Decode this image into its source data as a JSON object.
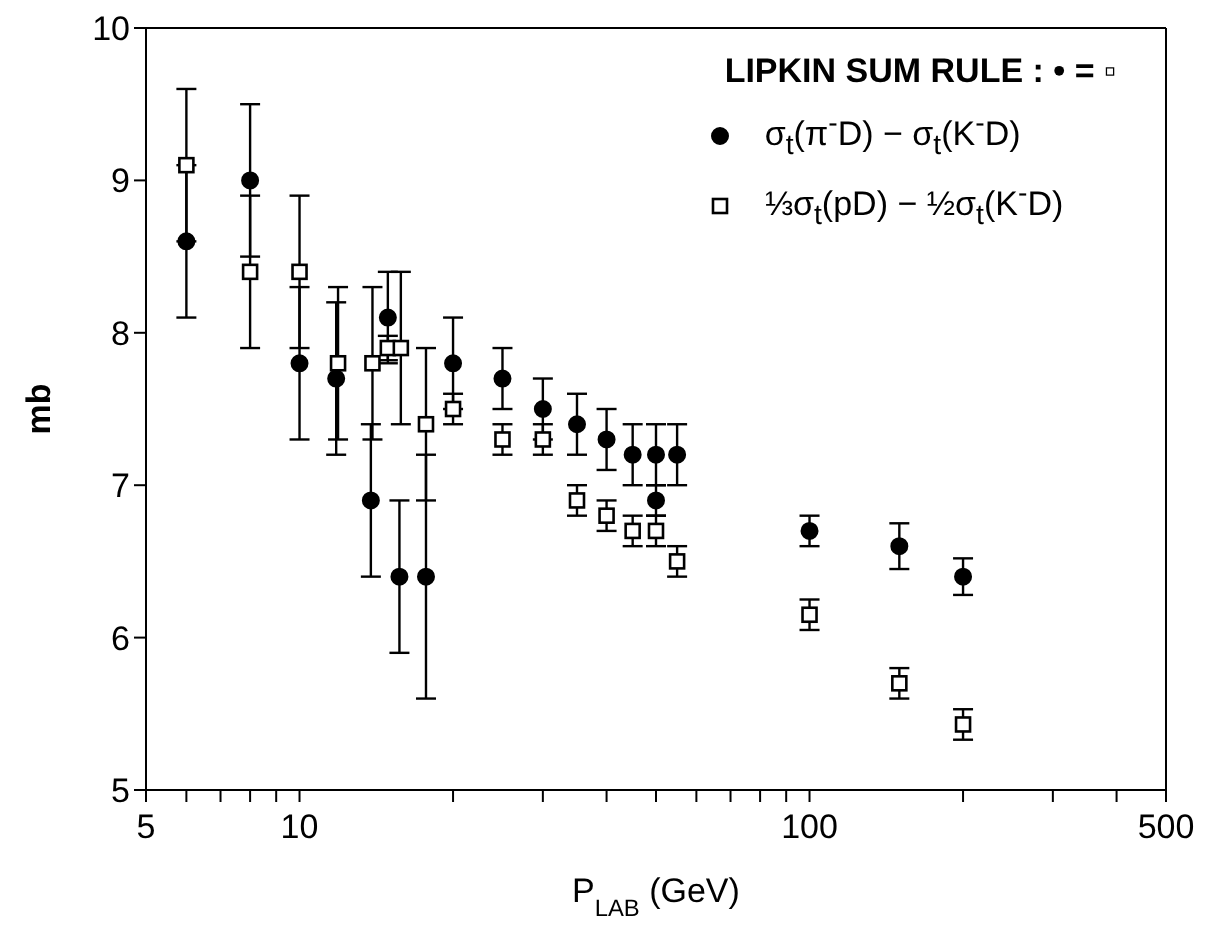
{
  "chart_data": {
    "type": "scatter",
    "xlabel": "P$_{LAB}$ (GeV)",
    "ylabel": "mb",
    "legend_title": "LIPKIN SUM RULE : • = ▫",
    "legend": "top right",
    "log": "x",
    "xlim": [
      5,
      500
    ],
    "xticks": [
      5,
      {
        "value": 6,
        "label": null
      },
      {
        "value": 7,
        "label": null
      },
      {
        "value": 8,
        "label": null
      },
      {
        "value": 9,
        "label": null
      },
      10,
      {
        "value": 20,
        "label": null
      },
      {
        "value": 30,
        "label": null
      },
      {
        "value": 40,
        "label": null
      },
      {
        "value": 50,
        "label": null
      },
      {
        "value": 60,
        "label": null
      },
      {
        "value": 70,
        "label": null
      },
      {
        "value": 80,
        "label": null
      },
      {
        "value": 90,
        "label": null
      },
      100,
      {
        "value": 200,
        "label": null
      },
      {
        "value": 300,
        "label": null
      },
      {
        "value": 400,
        "label": null
      },
      500
    ],
    "ylim": [
      5,
      10
    ],
    "yticks": [
      5,
      6,
      7,
      8,
      9,
      10
    ],
    "series": [
      {
        "name": "σ$_{t}$(π$^{-}$D) − σ$_{t}$(K$^{-}$D)",
        "color": "#000000",
        "marker": "circle",
        "x": [
          6,
          8,
          10,
          11.8,
          13.8,
          14.9,
          15.7,
          17.7,
          20,
          25,
          30,
          35,
          40,
          45,
          50,
          55,
          50,
          100,
          150,
          200
        ],
        "values": [
          8.6,
          9.0,
          7.8,
          7.7,
          6.9,
          8.1,
          6.4,
          6.4,
          7.8,
          7.7,
          7.5,
          7.4,
          7.3,
          7.2,
          7.2,
          7.2,
          6.9,
          6.7,
          6.6,
          6.4
        ],
        "errors": [
          0.5,
          0.5,
          0.5,
          0.5,
          0.5,
          0.3,
          0.5,
          0.8,
          0.3,
          0.2,
          0.2,
          0.2,
          0.2,
          0.2,
          0.2,
          0.2,
          0.1,
          0.1,
          0.15,
          0.12
        ]
      },
      {
        "name": "⅓σ$_{t}$(pD) − ½σ$_{t}$(K$^{-}$D)",
        "color": "#000000",
        "marker": "square",
        "x": [
          6,
          8,
          10,
          11.9,
          13.9,
          14.9,
          15.8,
          17.7,
          20,
          25,
          30,
          35,
          40,
          45,
          50,
          55,
          100,
          150,
          200
        ],
        "values": [
          9.1,
          8.4,
          8.4,
          7.8,
          7.8,
          7.9,
          7.9,
          7.4,
          7.5,
          7.3,
          7.3,
          6.9,
          6.8,
          6.7,
          6.7,
          6.5,
          6.15,
          5.7,
          5.43
        ],
        "errors": [
          0.5,
          0.5,
          0.5,
          0.5,
          0.5,
          0.08,
          0.5,
          0.5,
          0.1,
          0.1,
          0.1,
          0.1,
          0.1,
          0.1,
          0.1,
          0.1,
          0.1,
          0.1,
          0.1
        ]
      }
    ]
  }
}
